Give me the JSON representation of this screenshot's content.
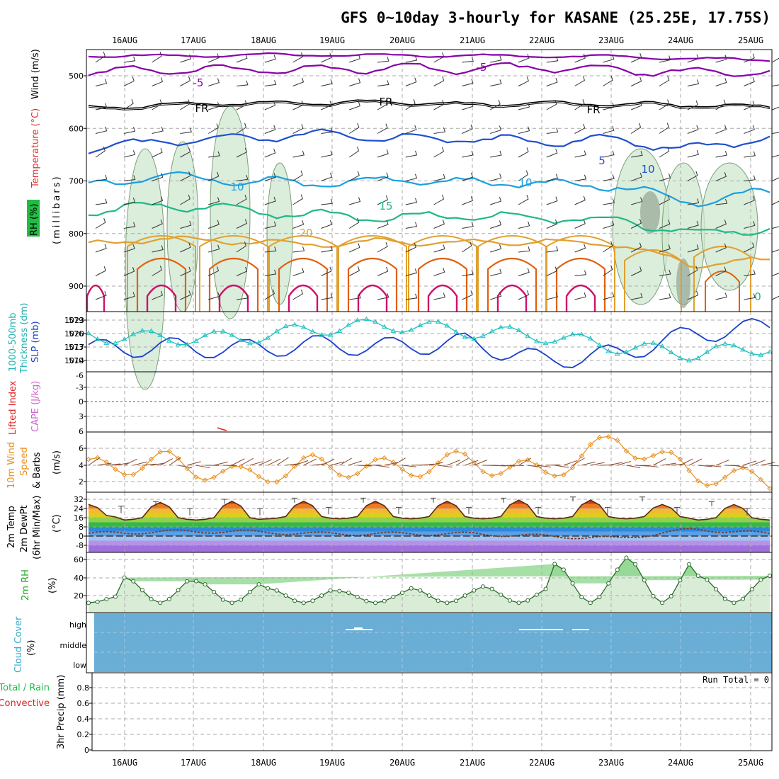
{
  "title": "GFS 0~10day 3-hourly for KASANE (25.25E, 17.75S)",
  "dates": [
    "16AUG",
    "17AUG",
    "18AUG",
    "19AUG",
    "20AUG",
    "21AUG",
    "22AUG",
    "23AUG",
    "24AUG",
    "25AUG"
  ],
  "colors": {
    "purple": "#8800aa",
    "black": "#000000",
    "blue": "#1f4fd0",
    "lightblue": "#1aa0e0",
    "teal": "#20b888",
    "gold": "#e0a030",
    "orange": "#e06010",
    "magenta": "#d0106a",
    "rh_green": "#cfe7cf",
    "cloud": "#6aaed6",
    "slp": "#1a3fcc",
    "thick": "#20c0c0",
    "lifted": "#dd2222",
    "cape": "#cc66cc",
    "wind10": "#e89020",
    "barb": "#8b4a2a",
    "dewpt": "#7b3a2a"
  },
  "panels": {
    "upper": {
      "y_labels": [
        "Temperature (°C)",
        "Wind (m/s)",
        "RH (%)",
        "(millibars)"
      ],
      "ticks": [
        "500",
        "600",
        "700",
        "800",
        "900"
      ],
      "contour_labels": [
        "-5",
        "-5",
        "FR",
        "FR",
        "FR",
        "5",
        "10",
        "10",
        "15",
        "20",
        "10",
        "10",
        "0"
      ]
    },
    "slp": {
      "y_labels": [
        "1000-500mb",
        "Thickness (dm)",
        "SLP (mb)"
      ],
      "left_ticks": [
        "579",
        "576",
        "573",
        "570"
      ],
      "right_ticks": [
        "1023",
        "1020",
        "1017",
        "1014"
      ]
    },
    "lifted": {
      "y_labels": [
        "Lifted Index",
        "CAPE (J/kg)"
      ],
      "ticks": [
        "-6",
        "-3",
        "0",
        "3",
        "6"
      ]
    },
    "wind10": {
      "y_labels": [
        "10m Wind",
        "Speed",
        "(m/s)",
        "& Barbs"
      ],
      "ticks": [
        "6",
        "4",
        "2"
      ]
    },
    "temp": {
      "y_labels": [
        "2m Temp",
        "2m DewPt",
        "(6hr Min/Max)",
        "(°C)"
      ],
      "ticks": [
        "32",
        "24",
        "16",
        "8",
        "0",
        "-8"
      ]
    },
    "rh2m": {
      "y_labels": [
        "2m RH",
        "(%)"
      ],
      "ticks": [
        "60",
        "40",
        "20"
      ]
    },
    "cloud": {
      "y_labels": [
        "Cloud Cover",
        "(%)"
      ],
      "levels": [
        "high",
        "middle",
        "low"
      ]
    },
    "precip": {
      "y_labels": [
        "Total / Rain",
        "Convective",
        "3hr Precip (mm)"
      ],
      "ticks": [
        "0.8",
        "0.6",
        "0.4",
        "0.2",
        "0"
      ],
      "run_total": "Run Total = 0"
    }
  },
  "chart_data": [
    {
      "type": "line",
      "title": "Temperature contours (°C) vs pressure (mb)",
      "ylabel": "millibars",
      "ylim": [
        950,
        450
      ],
      "series": [
        {
          "name": "-5",
          "values": [
            490,
            490,
            488,
            487,
            486,
            487,
            485,
            490,
            495,
            492
          ]
        },
        {
          "name": "FR",
          "values": [
            560,
            555,
            552,
            552,
            550,
            555,
            552,
            553,
            556,
            558
          ]
        },
        {
          "name": "5",
          "values": [
            640,
            625,
            620,
            612,
            618,
            620,
            625,
            622,
            640,
            615
          ]
        },
        {
          "name": "10",
          "values": [
            710,
            690,
            700,
            705,
            698,
            702,
            705,
            710,
            740,
            720
          ]
        },
        {
          "name": "15",
          "values": [
            760,
            745,
            755,
            765,
            770,
            765,
            770,
            775,
            800,
            790
          ]
        },
        {
          "name": "20",
          "values": [
            820,
            810,
            815,
            820,
            815,
            818,
            815,
            820,
            860,
            850
          ]
        }
      ]
    },
    {
      "type": "line",
      "title": "SLP and Thickness",
      "categories": [
        "16AUG",
        "17AUG",
        "18AUG",
        "19AUG",
        "20AUG",
        "21AUG",
        "22AUG",
        "23AUG",
        "24AUG",
        "25AUG"
      ],
      "series": [
        {
          "name": "SLP (mb)",
          "values": [
            1016.5,
            1017,
            1016.5,
            1017.5,
            1017,
            1018,
            1014,
            1015.5,
            1020,
            1021.5
          ]
        },
        {
          "name": "Thickness (dm)",
          "values": [
            575.5,
            575,
            575,
            577,
            578,
            576.5,
            575.5,
            573,
            571.5,
            573
          ]
        }
      ],
      "ylim_slp": [
        1012,
        1024
      ],
      "ylim_thickness": [
        569,
        580
      ]
    },
    {
      "type": "line",
      "title": "10m Wind Speed",
      "x": [
        "16AUG",
        "17AUG",
        "18AUG",
        "19AUG",
        "20AUG",
        "21AUG",
        "22AUG",
        "23AUG",
        "24AUG",
        "25AUG"
      ],
      "series": [
        {
          "name": "Speed (m/s)",
          "values": [
            3.5,
            4.5,
            2.5,
            4.0,
            3.5,
            4.5,
            3.0,
            7.0,
            3.0,
            2.0
          ]
        }
      ],
      "ylim": [
        1,
        8
      ]
    },
    {
      "type": "area",
      "title": "2m Temp",
      "x": [
        "16AUG",
        "17AUG",
        "18AUG",
        "19AUG",
        "20AUG",
        "21AUG",
        "22AUG",
        "23AUG",
        "24AUG",
        "25AUG"
      ],
      "series": [
        {
          "name": "2m Temp max (°C)",
          "values": [
            28,
            30,
            31,
            31,
            31,
            31,
            32,
            32,
            28,
            28
          ]
        },
        {
          "name": "2m Temp min (°C)",
          "values": [
            18,
            16,
            16,
            17,
            17,
            17,
            17,
            17,
            17,
            16
          ]
        },
        {
          "name": "2m DewPt (°C)",
          "values": [
            2,
            4,
            4,
            2,
            2,
            2,
            0,
            -2,
            6,
            2
          ]
        }
      ],
      "ylim": [
        -10,
        36
      ]
    },
    {
      "type": "area",
      "title": "2m RH",
      "x": [
        "16AUG",
        "17AUG",
        "18AUG",
        "19AUG",
        "20AUG",
        "21AUG",
        "22AUG",
        "23AUG",
        "24AUG",
        "25AUG"
      ],
      "series": [
        {
          "name": "2m RH (%)",
          "values": [
            20,
            40,
            36,
            28,
            25,
            28,
            30,
            55,
            62,
            42
          ]
        }
      ],
      "ylim": [
        0,
        65
      ]
    },
    {
      "type": "bar",
      "title": "3hr Precip",
      "categories": [
        "16AUG",
        "17AUG",
        "18AUG",
        "19AUG",
        "20AUG",
        "21AUG",
        "22AUG",
        "23AUG",
        "24AUG",
        "25AUG"
      ],
      "values": [
        0,
        0,
        0,
        0,
        0,
        0,
        0,
        0,
        0,
        0
      ],
      "ylim": [
        0,
        0.9
      ]
    }
  ]
}
